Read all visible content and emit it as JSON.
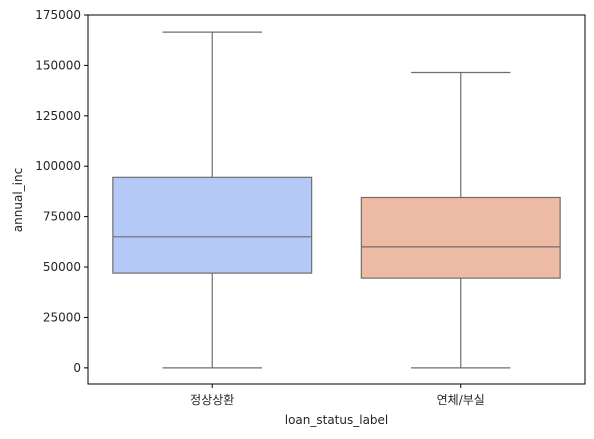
{
  "chart_data": {
    "type": "box",
    "xlabel": "loan_status_label",
    "ylabel": "annual_inc",
    "ylim": [
      -8000,
      175000
    ],
    "yticks": [
      0,
      25000,
      50000,
      75000,
      100000,
      125000,
      150000,
      175000
    ],
    "grid": false,
    "categories": [
      "정상상환",
      "연체/부실"
    ],
    "boxes": [
      {
        "category": "정상상환",
        "whisker_low": 0,
        "q1": 47000,
        "median": 65000,
        "q3": 94500,
        "whisker_high": 166500,
        "color": "#b4c9f5"
      },
      {
        "category": "연체/부실",
        "whisker_low": 0,
        "q1": 44500,
        "median": 60000,
        "q3": 84500,
        "whisker_high": 146500,
        "color": "#edbba4"
      }
    ]
  }
}
